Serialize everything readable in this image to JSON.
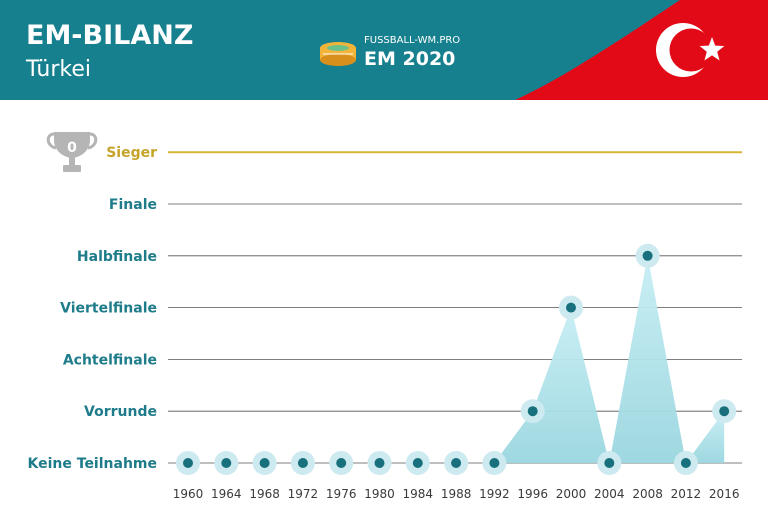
{
  "header": {
    "title": "EM-BILANZ",
    "subtitle": "Türkei",
    "brand_small": "FUSSBALL-WM.PRO",
    "brand_large": "EM 2020",
    "colors": {
      "header_bg": "#17808e",
      "flag_red": "#e30a17"
    }
  },
  "trophy": {
    "icon": "trophy-icon",
    "count": "0"
  },
  "chart_data": {
    "type": "line",
    "y_categories": [
      "Keine Teilnahme",
      "Vorrunde",
      "Achtelfinale",
      "Viertelfinale",
      "Halbfinale",
      "Finale",
      "Sieger"
    ],
    "x": [
      "1960",
      "1964",
      "1968",
      "1972",
      "1976",
      "1980",
      "1984",
      "1988",
      "1992",
      "1996",
      "2000",
      "2004",
      "2008",
      "2012",
      "2016"
    ],
    "series": [
      {
        "values": [
          "Keine Teilnahme",
          "Keine Teilnahme",
          "Keine Teilnahme",
          "Keine Teilnahme",
          "Keine Teilnahme",
          "Keine Teilnahme",
          "Keine Teilnahme",
          "Keine Teilnahme",
          "Keine Teilnahme",
          "Vorrunde",
          "Viertelfinale",
          "Keine Teilnahme",
          "Halbfinale",
          "Keine Teilnahme",
          "Vorrunde"
        ]
      }
    ],
    "colors": {
      "point": "#17707c",
      "halo": "#cdeaf0",
      "area": "#a7dde6",
      "grid": "#555555",
      "top_line": "#d8b531"
    }
  }
}
